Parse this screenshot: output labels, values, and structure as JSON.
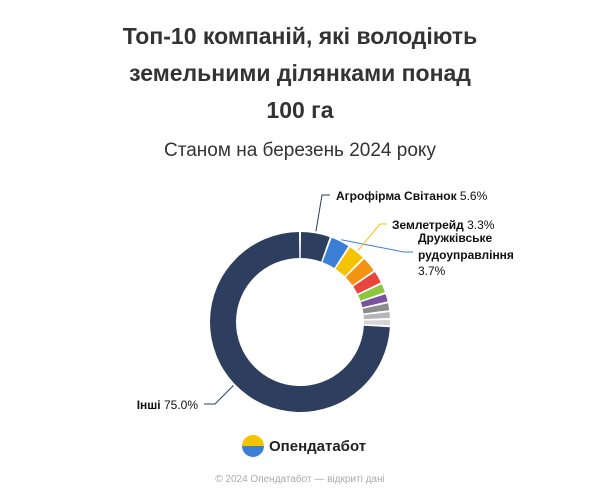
{
  "chart_data": {
    "type": "pie",
    "title_lines": [
      "Топ-10 компаній, які володіють",
      "земельними ділянками понад",
      "100 га"
    ],
    "subtitle": "Станом на березень 2024 року",
    "slices": [
      {
        "label": "Агрофірма Світанок",
        "value": 5.6,
        "value_text": "5.6%",
        "color": "#2e3e5e"
      },
      {
        "label": "Дружківське рудоуправління",
        "value": 3.7,
        "value_text": "3.7%",
        "color": "#3a7fd5"
      },
      {
        "label": "Землетрейд",
        "value": 3.3,
        "value_text": "3.3%",
        "color": "#f5c400"
      },
      {
        "label": "",
        "value": 3.0,
        "value_text": "",
        "color": "#f39314"
      },
      {
        "label": "",
        "value": 2.5,
        "value_text": "",
        "color": "#e8453c"
      },
      {
        "label": "",
        "value": 1.9,
        "value_text": "",
        "color": "#8cc63f"
      },
      {
        "label": "",
        "value": 1.7,
        "value_text": "",
        "color": "#7a52a0"
      },
      {
        "label": "",
        "value": 1.6,
        "value_text": "",
        "color": "#8c8c8c"
      },
      {
        "label": "",
        "value": 1.4,
        "value_text": "",
        "color": "#b5b5b5"
      },
      {
        "label": "",
        "value": 1.3,
        "value_text": "",
        "color": "#d5d5d5"
      },
      {
        "label": "Інші",
        "value": 75.0,
        "value_text": "75.0%",
        "color": "#2e3e5e"
      }
    ],
    "legend": "none"
  },
  "brand": {
    "name": "Опендатабот"
  },
  "footer": {
    "text": "© 2024 Опендатабот — відкриті дані"
  }
}
